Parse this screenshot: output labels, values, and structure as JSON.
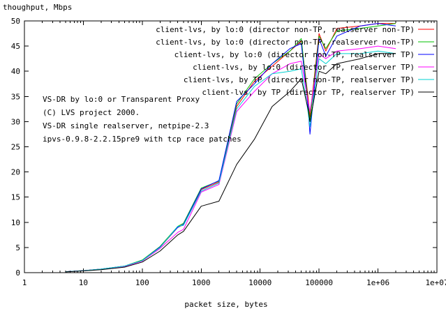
{
  "chart_data": {
    "type": "line",
    "title": "",
    "ylabel": "thoughput, Mbps",
    "xlabel": "packet size, bytes",
    "xscale": "log",
    "xlim": [
      1,
      10000000
    ],
    "ylim": [
      0,
      50
    ],
    "grid": false,
    "legend_position": "top-right",
    "x_ticks": [
      {
        "value": 1,
        "label": "1"
      },
      {
        "value": 10,
        "label": "10"
      },
      {
        "value": 100,
        "label": "100"
      },
      {
        "value": 1000,
        "label": "1000"
      },
      {
        "value": 10000,
        "label": "10000"
      },
      {
        "value": 100000,
        "label": "100000"
      },
      {
        "value": 1000000,
        "label": "1e+06"
      },
      {
        "value": 10000000,
        "label": "1e+07"
      }
    ],
    "y_ticks": [
      {
        "value": 0,
        "label": "0"
      },
      {
        "value": 5,
        "label": "5"
      },
      {
        "value": 10,
        "label": "10"
      },
      {
        "value": 15,
        "label": "15"
      },
      {
        "value": 20,
        "label": "20"
      },
      {
        "value": 25,
        "label": "25"
      },
      {
        "value": 30,
        "label": "30"
      },
      {
        "value": 35,
        "label": "35"
      },
      {
        "value": 40,
        "label": "40"
      },
      {
        "value": 45,
        "label": "45"
      },
      {
        "value": 50,
        "label": "50"
      }
    ],
    "annotations": [
      "VS-DR by lo:0 or Transparent Proxy",
      "(C) LVS project 2000.",
      "VS-DR single realserver, netpipe-2.3",
      "ipvs-0.9.8-2.2.15pre9 with tcp race patches"
    ],
    "series": [
      {
        "name": "client-lvs, by lo:0 (director non-TP, realserver non-TP)",
        "color": "#ff0000",
        "x": [
          5,
          10,
          20,
          50,
          100,
          200,
          400,
          500,
          1000,
          2000,
          4000,
          8000,
          16000,
          32000,
          50000,
          65000,
          70000,
          100000,
          130000,
          200000,
          500000,
          1000000,
          2000000
        ],
        "y": [
          0.2,
          0.4,
          0.7,
          1.3,
          2.4,
          5.0,
          9.0,
          9.5,
          16.5,
          18.0,
          33.0,
          38.0,
          41.0,
          44.0,
          46.0,
          35.0,
          31.0,
          47.5,
          44.0,
          48.5,
          49.0,
          49.5,
          49.5
        ]
      },
      {
        "name": "client-lvs, by lo:0 (director non-TP, realserver non-TP)",
        "color": "#00c000",
        "x": [
          5,
          10,
          20,
          50,
          100,
          200,
          400,
          500,
          1000,
          2000,
          4000,
          8000,
          16000,
          32000,
          50000,
          65000,
          70000,
          100000,
          130000,
          200000,
          500000,
          1000000,
          2000000
        ],
        "y": [
          0.2,
          0.4,
          0.7,
          1.3,
          2.5,
          5.2,
          9.2,
          9.8,
          16.8,
          18.2,
          33.5,
          38.5,
          41.5,
          44.0,
          46.5,
          34.0,
          30.0,
          47.0,
          44.5,
          48.0,
          48.5,
          49.0,
          49.5
        ]
      },
      {
        "name": "client-lvs, by lo:0 (director non-TP, realserver TP)",
        "color": "#0000ff",
        "x": [
          5,
          10,
          20,
          50,
          100,
          200,
          400,
          500,
          1000,
          2000,
          4000,
          8000,
          16000,
          32000,
          50000,
          65000,
          70000,
          100000,
          130000,
          200000,
          500000,
          1000000,
          2000000
        ],
        "y": [
          0.2,
          0.4,
          0.7,
          1.3,
          2.4,
          5.1,
          9.0,
          9.6,
          16.6,
          18.3,
          34.0,
          37.5,
          41.5,
          44.5,
          45.5,
          33.0,
          27.5,
          46.5,
          43.0,
          47.0,
          49.0,
          49.5,
          49.0
        ]
      },
      {
        "name": "client-lvs, by lo:0 (director TP, realserver TP)",
        "color": "#ff00ff",
        "x": [
          5,
          10,
          20,
          50,
          100,
          200,
          400,
          500,
          1000,
          2000,
          4000,
          8000,
          16000,
          32000,
          50000,
          65000,
          70000,
          100000,
          130000,
          200000,
          500000,
          1000000,
          2000000
        ],
        "y": [
          0.2,
          0.4,
          0.7,
          1.2,
          2.3,
          4.8,
          8.0,
          8.6,
          16.0,
          17.5,
          32.0,
          36.0,
          39.5,
          41.5,
          42.0,
          34.0,
          32.0,
          43.5,
          42.5,
          44.0,
          44.5,
          45.0,
          44.5
        ]
      },
      {
        "name": "client-lvs, by TP (director non-TP, realserver TP)",
        "color": "#00d0d0",
        "x": [
          5,
          10,
          20,
          50,
          100,
          200,
          400,
          500,
          1000,
          2000,
          4000,
          8000,
          16000,
          32000,
          50000,
          65000,
          70000,
          100000,
          130000,
          200000,
          500000,
          1000000,
          2000000
        ],
        "y": [
          0.2,
          0.4,
          0.7,
          1.3,
          2.4,
          5.0,
          9.2,
          9.4,
          16.2,
          17.8,
          32.5,
          37.0,
          39.5,
          40.0,
          40.5,
          32.0,
          29.0,
          42.5,
          41.5,
          43.5,
          43.5,
          44.0,
          43.5
        ]
      },
      {
        "name": "client-lvs, by TP (director TP, realserver TP)",
        "color": "#000000",
        "x": [
          5,
          10,
          20,
          50,
          100,
          200,
          400,
          500,
          1000,
          2000,
          4000,
          8000,
          16000,
          32000,
          50000,
          65000,
          70000,
          100000,
          130000,
          200000,
          500000,
          1000000,
          2000000
        ],
        "y": [
          0.15,
          0.35,
          0.6,
          1.1,
          2.1,
          4.3,
          7.5,
          8.2,
          13.2,
          14.2,
          21.5,
          26.5,
          33.0,
          36.0,
          38.5,
          32.5,
          30.0,
          40.0,
          39.5,
          41.5,
          42.5,
          43.5,
          43.5
        ]
      }
    ]
  }
}
